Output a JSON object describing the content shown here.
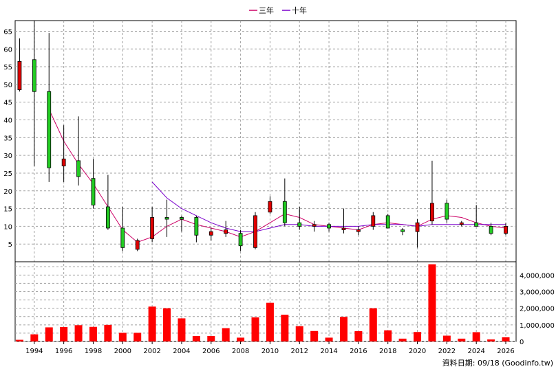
{
  "chart_data": [
    {
      "type": "candlestick",
      "title": "",
      "ylim": [
        0,
        68
      ],
      "yticks": [
        5,
        10,
        15,
        20,
        25,
        30,
        35,
        40,
        45,
        50,
        55,
        60,
        65
      ],
      "xlim": [
        1992.7,
        2026.7
      ],
      "xticks": [
        "1994",
        "1996",
        "1998",
        "2000",
        "2002",
        "2004",
        "2006",
        "2008",
        "2010",
        "2012",
        "2014",
        "2016",
        "2018",
        "2020",
        "2022",
        "2024",
        "2026"
      ],
      "grid": true,
      "legend": {
        "position": "top-center",
        "items": [
          {
            "label": "三年",
            "color": "#cc0066"
          },
          {
            "label": "十年",
            "color": "#7a00cc"
          }
        ]
      },
      "candles": [
        {
          "year": 1993,
          "open": 48.5,
          "high": 63,
          "low": 48,
          "close": 56.5
        },
        {
          "year": 1994,
          "open": 57,
          "high": 68,
          "low": 27,
          "close": 48
        },
        {
          "year": 1995,
          "open": 48,
          "high": 64.5,
          "low": 22.5,
          "close": 26.5
        },
        {
          "year": 1996,
          "open": 27,
          "high": 38.5,
          "low": 22.5,
          "close": 29
        },
        {
          "year": 1997,
          "open": 28.5,
          "high": 41,
          "low": 21.5,
          "close": 24
        },
        {
          "year": 1998,
          "open": 23.5,
          "high": 29,
          "low": 15,
          "close": 16
        },
        {
          "year": 1999,
          "open": 15.5,
          "high": 24.5,
          "low": 9,
          "close": 9.5
        },
        {
          "year": 2000,
          "open": 9.5,
          "high": 15.5,
          "low": 3,
          "close": 4
        },
        {
          "year": 2001,
          "open": 3.5,
          "high": 6.5,
          "low": 3,
          "close": 6
        },
        {
          "year": 2002,
          "open": 6.5,
          "high": 15.5,
          "low": 5.5,
          "close": 12.5
        },
        {
          "year": 2003,
          "open": 12.5,
          "high": 17.5,
          "low": 7,
          "close": 12
        },
        {
          "year": 2004,
          "open": 12.5,
          "high": 13,
          "low": 8.5,
          "close": 12
        },
        {
          "year": 2005,
          "open": 12.5,
          "high": 13,
          "low": 5.5,
          "close": 7.5
        },
        {
          "year": 2006,
          "open": 7.5,
          "high": 9.5,
          "low": 6,
          "close": 8.5
        },
        {
          "year": 2007,
          "open": 8,
          "high": 11.5,
          "low": 7,
          "close": 9
        },
        {
          "year": 2008,
          "open": 8,
          "high": 9,
          "low": 3,
          "close": 4.5
        },
        {
          "year": 2009,
          "open": 4,
          "high": 14,
          "low": 3.5,
          "close": 13
        },
        {
          "year": 2010,
          "open": 14,
          "high": 18.5,
          "low": 13.5,
          "close": 17
        },
        {
          "year": 2011,
          "open": 17,
          "high": 23.5,
          "low": 10,
          "close": 11
        },
        {
          "year": 2012,
          "open": 11,
          "high": 15.5,
          "low": 9,
          "close": 10
        },
        {
          "year": 2013,
          "open": 10,
          "high": 11.5,
          "low": 8.5,
          "close": 10.5
        },
        {
          "year": 2014,
          "open": 10.5,
          "high": 11,
          "low": 8.5,
          "close": 9.5
        },
        {
          "year": 2015,
          "open": 9,
          "high": 15,
          "low": 8,
          "close": 9.5
        },
        {
          "year": 2016,
          "open": 8.5,
          "high": 10,
          "low": 7.5,
          "close": 9
        },
        {
          "year": 2017,
          "open": 10,
          "high": 14,
          "low": 9,
          "close": 13
        },
        {
          "year": 2018,
          "open": 13,
          "high": 13.5,
          "low": 9.5,
          "close": 9.5
        },
        {
          "year": 2019,
          "open": 9,
          "high": 9.5,
          "low": 7.5,
          "close": 8.5
        },
        {
          "year": 2020,
          "open": 8.5,
          "high": 12,
          "low": 4,
          "close": 11
        },
        {
          "year": 2021,
          "open": 11.5,
          "high": 28.5,
          "low": 10.5,
          "close": 16.5
        },
        {
          "year": 2022,
          "open": 16.5,
          "high": 17.5,
          "low": 11,
          "close": 12
        },
        {
          "year": 2023,
          "open": 10.5,
          "high": 11.5,
          "low": 10,
          "close": 11
        },
        {
          "year": 2024,
          "open": 11,
          "high": 16,
          "low": 10,
          "close": 10
        },
        {
          "year": 2025,
          "open": 10,
          "high": 11,
          "low": 7.5,
          "close": 8
        },
        {
          "year": 2026,
          "open": 8,
          "high": 11,
          "low": 7.5,
          "close": 10
        }
      ],
      "series": [
        {
          "name": "三年",
          "color": "#cc0066",
          "points": [
            [
              1995,
              43
            ],
            [
              1996,
              34
            ],
            [
              1997,
              27.5
            ],
            [
              1998,
              22
            ],
            [
              1999,
              15.5
            ],
            [
              2000,
              9
            ],
            [
              2001,
              5.5
            ],
            [
              2002,
              7
            ],
            [
              2003,
              10
            ],
            [
              2004,
              12
            ],
            [
              2005,
              10.5
            ],
            [
              2006,
              9.5
            ],
            [
              2007,
              8.5
            ],
            [
              2008,
              7
            ],
            [
              2009,
              8.5
            ],
            [
              2010,
              11
            ],
            [
              2011,
              13.5
            ],
            [
              2012,
              12.5
            ],
            [
              2013,
              10.5
            ],
            [
              2014,
              10
            ],
            [
              2015,
              9.5
            ],
            [
              2016,
              9
            ],
            [
              2017,
              10.5
            ],
            [
              2018,
              11
            ],
            [
              2019,
              10.5
            ],
            [
              2020,
              10
            ],
            [
              2021,
              12
            ],
            [
              2022,
              13
            ],
            [
              2023,
              12.5
            ],
            [
              2024,
              11
            ],
            [
              2025,
              10
            ],
            [
              2026,
              9.5
            ]
          ]
        },
        {
          "name": "十年",
          "color": "#7a00cc",
          "points": [
            [
              2002,
              22.5
            ],
            [
              2003,
              18
            ],
            [
              2004,
              15
            ],
            [
              2005,
              13
            ],
            [
              2006,
              11
            ],
            [
              2007,
              9.5
            ],
            [
              2008,
              8.5
            ],
            [
              2009,
              8.5
            ],
            [
              2010,
              9.5
            ],
            [
              2011,
              10.5
            ],
            [
              2012,
              10.5
            ],
            [
              2013,
              10
            ],
            [
              2014,
              10
            ],
            [
              2015,
              10
            ],
            [
              2016,
              10
            ],
            [
              2017,
              10.5
            ],
            [
              2018,
              10.5
            ],
            [
              2019,
              10.5
            ],
            [
              2020,
              10
            ],
            [
              2021,
              10.5
            ],
            [
              2022,
              10.5
            ],
            [
              2023,
              10.5
            ],
            [
              2024,
              10.5
            ],
            [
              2025,
              10.5
            ],
            [
              2026,
              10.5
            ]
          ]
        }
      ]
    },
    {
      "type": "bar",
      "ylim": [
        0,
        4800000
      ],
      "yticks": [
        "0",
        "1,000,000",
        "2,000,000",
        "3,000,000",
        "4,000,000"
      ],
      "ytick_values": [
        0,
        1000000,
        2000000,
        3000000,
        4000000
      ],
      "color": "#ff0000",
      "x": [
        1993,
        1994,
        1995,
        1996,
        1997,
        1998,
        1999,
        2000,
        2001,
        2002,
        2003,
        2004,
        2005,
        2006,
        2007,
        2008,
        2009,
        2010,
        2011,
        2012,
        2013,
        2014,
        2015,
        2016,
        2017,
        2018,
        2019,
        2020,
        2021,
        2022,
        2023,
        2024,
        2025,
        2026
      ],
      "values": [
        100000,
        430000,
        850000,
        870000,
        980000,
        880000,
        1000000,
        520000,
        520000,
        2100000,
        2000000,
        1390000,
        330000,
        330000,
        800000,
        230000,
        1450000,
        2330000,
        1610000,
        920000,
        630000,
        230000,
        1480000,
        620000,
        2000000,
        670000,
        170000,
        570000,
        4650000,
        350000,
        170000,
        560000,
        120000,
        250000
      ]
    }
  ],
  "footer": {
    "source": "資料日期: 09/18  (Goodinfo.tw)"
  }
}
